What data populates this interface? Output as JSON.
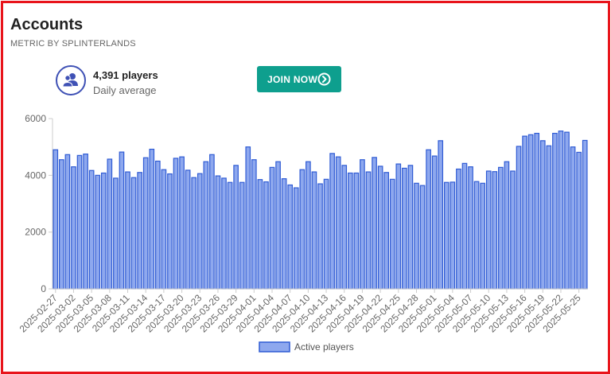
{
  "header": {
    "title": "Accounts",
    "subtitle": "METRIC BY SPLINTERLANDS"
  },
  "stat": {
    "value": "4,391 players",
    "label": "Daily average",
    "icon": "users-icon"
  },
  "join_button": {
    "label": "JOIN NOW",
    "icon": "chevron-right-circle-icon",
    "color": "#0e9f8e"
  },
  "colors": {
    "bar_fill": "#8ea8ee",
    "bar_stroke": "#2f5bd4",
    "frame_border": "#e8141b"
  },
  "chart_data": {
    "type": "bar",
    "title": "",
    "xlabel": "",
    "ylabel": "",
    "ylim": [
      0,
      6000
    ],
    "yticks": [
      0,
      2000,
      4000,
      6000
    ],
    "grid": false,
    "legend_position": "bottom",
    "series": [
      {
        "name": "Active players",
        "values": [
          4900,
          4550,
          4730,
          4300,
          4700,
          4750,
          4170,
          4000,
          4080,
          4570,
          3900,
          4820,
          4120,
          3920,
          4100,
          4620,
          4920,
          4500,
          4200,
          4050,
          4600,
          4650,
          4180,
          3920,
          4060,
          4480,
          4730,
          3980,
          3900,
          3750,
          4350,
          3750,
          5000,
          4550,
          3850,
          3770,
          4280,
          4480,
          3880,
          3660,
          3560,
          4200,
          4480,
          4120,
          3700,
          3860,
          4770,
          4650,
          4350,
          4080,
          4080,
          4550,
          4120,
          4630,
          4320,
          4100,
          3860,
          4400,
          4250,
          4350,
          3720,
          3640,
          4900,
          4680,
          5220,
          3750,
          3760,
          4220,
          4420,
          4300,
          3780,
          3720,
          4150,
          4130,
          4280,
          4480,
          4150,
          5020,
          5380,
          5430,
          5480,
          5220,
          5040,
          5480,
          5560,
          5520,
          5000,
          4810,
          5230
        ]
      }
    ],
    "x_tick_labels": [
      "2025-02-27",
      "2025-03-02",
      "2025-03-05",
      "2025-03-08",
      "2025-03-11",
      "2025-03-14",
      "2025-03-17",
      "2025-03-20",
      "2025-03-23",
      "2025-03-26",
      "2025-03-29",
      "2025-04-01",
      "2025-04-04",
      "2025-04-07",
      "2025-04-10",
      "2025-04-13",
      "2025-04-16",
      "2025-04-19",
      "2025-04-22",
      "2025-04-25",
      "2025-04-28",
      "2025-05-01",
      "2025-05-04",
      "2025-05-07",
      "2025-05-10",
      "2025-05-13",
      "2025-05-16",
      "2025-05-19",
      "2025-05-22",
      "2025-05-25"
    ],
    "tick_every": 3
  }
}
